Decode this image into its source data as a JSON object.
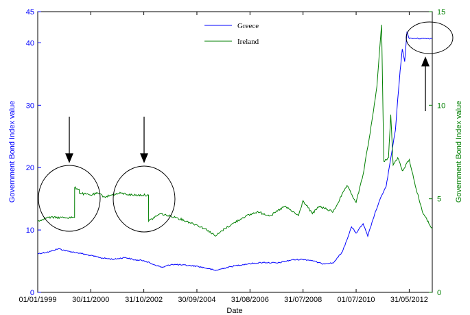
{
  "chart_data": {
    "type": "line",
    "xlabel": "Date",
    "ylabel_left": "Government Bond Index value",
    "ylabel_right": "Government Bond Index value",
    "x_ticks": [
      "01/01/1999",
      "30/11/2000",
      "31/10/2002",
      "30/09/2004",
      "31/08/2006",
      "31/07/2008",
      "01/07/2010",
      "31/05/2012"
    ],
    "y_left_ticks": [
      "0",
      "10",
      "20",
      "30",
      "40",
      "45"
    ],
    "y_right_ticks": [
      "0",
      "5",
      "10",
      "15"
    ],
    "ylim_left": [
      0,
      45
    ],
    "ylim_right": [
      0,
      15
    ],
    "xlim": [
      "1999-01-01",
      "2013-03-31"
    ],
    "legend_position": "top-center",
    "colors": {
      "Greece": "#0000ff",
      "Ireland": "#007f00",
      "annotation": "#000000"
    },
    "series": [
      {
        "name": "Greece",
        "axis": "left",
        "points": [
          [
            "1999-01-01",
            6.2
          ],
          [
            "1999-06-01",
            6.5
          ],
          [
            "1999-10-01",
            7.0
          ],
          [
            "2000-02-01",
            6.6
          ],
          [
            "2000-07-01",
            6.3
          ],
          [
            "2000-11-30",
            5.9
          ],
          [
            "2001-05-01",
            5.5
          ],
          [
            "2001-10-01",
            5.3
          ],
          [
            "2002-03-01",
            5.6
          ],
          [
            "2002-07-01",
            5.2
          ],
          [
            "2002-10-31",
            5.1
          ],
          [
            "2003-03-01",
            4.5
          ],
          [
            "2003-07-01",
            4.0
          ],
          [
            "2003-11-01",
            4.5
          ],
          [
            "2004-03-01",
            4.4
          ],
          [
            "2004-09-30",
            4.2
          ],
          [
            "2005-03-01",
            3.8
          ],
          [
            "2005-06-01",
            3.5
          ],
          [
            "2005-10-01",
            3.9
          ],
          [
            "2006-03-01",
            4.3
          ],
          [
            "2006-08-31",
            4.6
          ],
          [
            "2007-03-01",
            4.8
          ],
          [
            "2007-09-01",
            4.7
          ],
          [
            "2008-03-01",
            5.2
          ],
          [
            "2008-07-31",
            5.3
          ],
          [
            "2008-12-01",
            5.1
          ],
          [
            "2009-04-01",
            4.6
          ],
          [
            "2009-09-01",
            4.7
          ],
          [
            "2010-01-01",
            6.5
          ],
          [
            "2010-05-01",
            10.5
          ],
          [
            "2010-07-01",
            9.5
          ],
          [
            "2010-10-01",
            11.0
          ],
          [
            "2010-12-01",
            9.0
          ],
          [
            "2011-03-01",
            12.5
          ],
          [
            "2011-06-01",
            15.5
          ],
          [
            "2011-08-01",
            17.0
          ],
          [
            "2011-10-01",
            21.5
          ],
          [
            "2011-12-01",
            26.0
          ],
          [
            "2012-01-01",
            31.0
          ],
          [
            "2012-02-01",
            35.5
          ],
          [
            "2012-03-01",
            39.0
          ],
          [
            "2012-04-01",
            37.0
          ],
          [
            "2012-05-01",
            41.8
          ],
          [
            "2012-05-31",
            40.7
          ],
          [
            "2013-03-31",
            40.7
          ]
        ]
      },
      {
        "name": "Ireland",
        "axis": "right",
        "points": [
          [
            "1999-01-01",
            3.8
          ],
          [
            "1999-03-01",
            3.9
          ],
          [
            "1999-05-01",
            4.0
          ],
          [
            "2000-05-01",
            4.0
          ],
          [
            "2000-05-02",
            5.6
          ],
          [
            "2000-07-01",
            5.5
          ],
          [
            "2000-07-02",
            5.3
          ],
          [
            "2000-12-01",
            5.2
          ],
          [
            "2001-03-01",
            5.3
          ],
          [
            "2001-06-01",
            5.1
          ],
          [
            "2001-09-01",
            5.2
          ],
          [
            "2002-01-01",
            5.3
          ],
          [
            "2002-06-01",
            5.2
          ],
          [
            "2003-01-01",
            5.2
          ],
          [
            "2003-01-02",
            3.8
          ],
          [
            "2003-06-01",
            4.2
          ],
          [
            "2004-01-01",
            4.0
          ],
          [
            "2004-09-30",
            3.6
          ],
          [
            "2005-03-01",
            3.3
          ],
          [
            "2005-06-01",
            3.0
          ],
          [
            "2005-10-01",
            3.4
          ],
          [
            "2006-06-01",
            4.0
          ],
          [
            "2006-12-01",
            4.3
          ],
          [
            "2007-06-01",
            4.1
          ],
          [
            "2007-12-01",
            4.6
          ],
          [
            "2008-06-01",
            4.1
          ],
          [
            "2008-07-31",
            4.9
          ],
          [
            "2008-12-01",
            4.2
          ],
          [
            "2009-03-01",
            4.6
          ],
          [
            "2009-09-01",
            4.3
          ],
          [
            "2010-03-01",
            5.7
          ],
          [
            "2010-07-01",
            4.8
          ],
          [
            "2010-10-01",
            6.3
          ],
          [
            "2011-01-01",
            8.5
          ],
          [
            "2011-04-01",
            11.0
          ],
          [
            "2011-06-01",
            14.3
          ],
          [
            "2011-07-01",
            7.0
          ],
          [
            "2011-09-01",
            7.2
          ],
          [
            "2011-10-01",
            9.5
          ],
          [
            "2011-11-01",
            6.8
          ],
          [
            "2012-01-01",
            7.2
          ],
          [
            "2012-03-01",
            6.5
          ],
          [
            "2012-06-01",
            7.1
          ],
          [
            "2012-09-01",
            5.5
          ],
          [
            "2012-12-01",
            4.2
          ],
          [
            "2013-03-31",
            3.4
          ]
        ]
      }
    ]
  }
}
